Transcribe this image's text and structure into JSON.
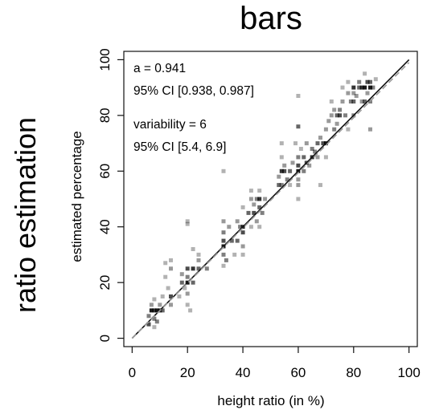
{
  "chart_data": {
    "type": "scatter",
    "title": "bars",
    "side_label": "ratio estimation",
    "xlabel": "height ratio (in %)",
    "ylabel": "estimated percentage",
    "xlim": [
      -3,
      103
    ],
    "ylim": [
      -3,
      103
    ],
    "x_ticks": [
      "0",
      "20",
      "40",
      "60",
      "80",
      "100"
    ],
    "y_ticks": [
      "0",
      "20",
      "40",
      "60",
      "80",
      "100"
    ],
    "annotations": [
      "a = 0.941",
      "95% CI [0.938, 0.987]",
      "variability = 6",
      "95% CI [5.4, 6.9]"
    ],
    "reference_line": {
      "style": "solid",
      "color": "#111111",
      "from": [
        0,
        0
      ],
      "to": [
        100,
        100
      ]
    },
    "fit_line": {
      "style": "dashed",
      "color": "#9a9a9a",
      "from": [
        0,
        0
      ],
      "to": [
        100,
        99
      ]
    },
    "points": [
      [
        6,
        5,
        0.7
      ],
      [
        6,
        8,
        0.5
      ],
      [
        7,
        10,
        0.9
      ],
      [
        7,
        12,
        0.4
      ],
      [
        8,
        10,
        0.8
      ],
      [
        8,
        7,
        0.5
      ],
      [
        8,
        4,
        0.3
      ],
      [
        8,
        14,
        0.3
      ],
      [
        9,
        10,
        0.9
      ],
      [
        9,
        6,
        0.5
      ],
      [
        10,
        10,
        0.8
      ],
      [
        10,
        12,
        0.4
      ],
      [
        11,
        10,
        0.6
      ],
      [
        11,
        15,
        0.3
      ],
      [
        12,
        22,
        0.3
      ],
      [
        12,
        27,
        0.3
      ],
      [
        13,
        18,
        0.3
      ],
      [
        14,
        15,
        0.7
      ],
      [
        14,
        25,
        0.4
      ],
      [
        14,
        28,
        0.3
      ],
      [
        14,
        12,
        0.4
      ],
      [
        17,
        15,
        0.3
      ],
      [
        18,
        20,
        0.6
      ],
      [
        18,
        23,
        0.4
      ],
      [
        19,
        18,
        0.3
      ],
      [
        20,
        20,
        0.9
      ],
      [
        20,
        25,
        0.7
      ],
      [
        20,
        16,
        0.4
      ],
      [
        20,
        22,
        0.5
      ],
      [
        20,
        12,
        0.3
      ],
      [
        20,
        41,
        0.3
      ],
      [
        20,
        42,
        0.3
      ],
      [
        21,
        10,
        0.3
      ],
      [
        22,
        25,
        0.8
      ],
      [
        22,
        20,
        0.6
      ],
      [
        22,
        32,
        0.3
      ],
      [
        24,
        25,
        0.6
      ],
      [
        24,
        28,
        0.4
      ],
      [
        24,
        30,
        0.3
      ],
      [
        27,
        25,
        0.5
      ],
      [
        33,
        33,
        0.9
      ],
      [
        33,
        35,
        0.7
      ],
      [
        33,
        30,
        0.5
      ],
      [
        33,
        38,
        0.5
      ],
      [
        33,
        42,
        0.4
      ],
      [
        33,
        60,
        0.3
      ],
      [
        33,
        26,
        0.3
      ],
      [
        34,
        28,
        0.5
      ],
      [
        35,
        40,
        0.4
      ],
      [
        36,
        35,
        0.6
      ],
      [
        37,
        30,
        0.3
      ],
      [
        38,
        35,
        0.6
      ],
      [
        38,
        42,
        0.4
      ],
      [
        39,
        40,
        0.5
      ],
      [
        40,
        38,
        0.7
      ],
      [
        40,
        40,
        0.8
      ],
      [
        40,
        47,
        0.3
      ],
      [
        40,
        30,
        0.3
      ],
      [
        40,
        33,
        0.4
      ],
      [
        42,
        45,
        0.6
      ],
      [
        43,
        50,
        0.4
      ],
      [
        43,
        53,
        0.3
      ],
      [
        43,
        40,
        0.3
      ],
      [
        44,
        45,
        0.7
      ],
      [
        44,
        48,
        0.4
      ],
      [
        45,
        50,
        0.5
      ],
      [
        45,
        42,
        0.4
      ],
      [
        46,
        47,
        0.6
      ],
      [
        46,
        50,
        0.8
      ],
      [
        46,
        53,
        0.3
      ],
      [
        46,
        40,
        0.3
      ],
      [
        47,
        45,
        0.5
      ],
      [
        48,
        50,
        0.4
      ],
      [
        53,
        55,
        0.6
      ],
      [
        53,
        58,
        0.4
      ],
      [
        54,
        60,
        0.8
      ],
      [
        54,
        55,
        0.5
      ],
      [
        54,
        65,
        0.3
      ],
      [
        54,
        70,
        0.3
      ],
      [
        55,
        60,
        0.7
      ],
      [
        55,
        62,
        0.4
      ],
      [
        56,
        57,
        0.5
      ],
      [
        57,
        60,
        0.6
      ],
      [
        57,
        55,
        0.3
      ],
      [
        58,
        63,
        0.4
      ],
      [
        59,
        70,
        0.3
      ],
      [
        60,
        60,
        0.9
      ],
      [
        60,
        62,
        0.7
      ],
      [
        60,
        65,
        0.5
      ],
      [
        60,
        55,
        0.4
      ],
      [
        60,
        76,
        0.6
      ],
      [
        60,
        87,
        0.3
      ],
      [
        60,
        50,
        0.3
      ],
      [
        60,
        57,
        0.4
      ],
      [
        61,
        68,
        0.3
      ],
      [
        62,
        65,
        0.6
      ],
      [
        62,
        60,
        0.5
      ],
      [
        63,
        63,
        0.7
      ],
      [
        63,
        70,
        0.4
      ],
      [
        64,
        62,
        0.4
      ],
      [
        65,
        65,
        0.8
      ],
      [
        65,
        68,
        0.5
      ],
      [
        66,
        67,
        0.5
      ],
      [
        67,
        65,
        0.4
      ],
      [
        67,
        70,
        0.6
      ],
      [
        68,
        72,
        0.4
      ],
      [
        68,
        55,
        0.3
      ],
      [
        69,
        70,
        0.7
      ],
      [
        70,
        70,
        0.9
      ],
      [
        70,
        75,
        0.4
      ],
      [
        70,
        65,
        0.3
      ],
      [
        71,
        78,
        0.4
      ],
      [
        72,
        80,
        0.4
      ],
      [
        72,
        85,
        0.3
      ],
      [
        73,
        75,
        0.5
      ],
      [
        73,
        82,
        0.4
      ],
      [
        74,
        80,
        0.6
      ],
      [
        74,
        77,
        0.4
      ],
      [
        75,
        80,
        0.7
      ],
      [
        75,
        82,
        0.5
      ],
      [
        76,
        85,
        0.4
      ],
      [
        76,
        90,
        0.3
      ],
      [
        77,
        80,
        0.5
      ],
      [
        78,
        88,
        0.4
      ],
      [
        78,
        92,
        0.3
      ],
      [
        78,
        75,
        0.3
      ],
      [
        79,
        85,
        0.5
      ],
      [
        80,
        85,
        0.6
      ],
      [
        80,
        80,
        0.5
      ],
      [
        80,
        90,
        0.8
      ],
      [
        80,
        88,
        0.4
      ],
      [
        81,
        87,
        0.4
      ],
      [
        82,
        90,
        0.6
      ],
      [
        82,
        92,
        0.5
      ],
      [
        83,
        85,
        0.4
      ],
      [
        83,
        90,
        0.8
      ],
      [
        84,
        90,
        0.9
      ],
      [
        84,
        85,
        0.6
      ],
      [
        84,
        95,
        0.3
      ],
      [
        85,
        88,
        0.4
      ],
      [
        85,
        92,
        0.7
      ],
      [
        86,
        90,
        0.9
      ],
      [
        86,
        92,
        0.6
      ],
      [
        86,
        85,
        0.5
      ],
      [
        86,
        75,
        0.4
      ],
      [
        87,
        90,
        0.5
      ],
      [
        88,
        93,
        0.3
      ]
    ]
  }
}
